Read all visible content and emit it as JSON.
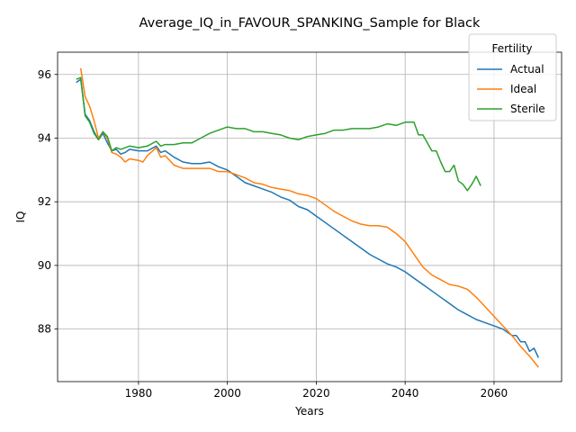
{
  "chart_data": {
    "type": "line",
    "title": "Average_IQ_in_FAVOUR_SPANKING_Sample for Black",
    "xlabel": "Years",
    "ylabel": "IQ",
    "xlim": [
      1961.8,
      2075.2
    ],
    "ylim": [
      86.35,
      96.7
    ],
    "x_ticks": [
      1980,
      2000,
      2020,
      2040,
      2060
    ],
    "y_ticks": [
      88,
      90,
      92,
      94,
      96
    ],
    "grid": true,
    "legend": {
      "title": "Fertility",
      "placement": "top-right"
    },
    "colors": {
      "Actual": "#1f77b4",
      "Ideal": "#ff7f0e",
      "Sterile": "#2ca02c"
    },
    "series": [
      {
        "name": "Actual",
        "points": [
          [
            1966,
            95.75
          ],
          [
            1967,
            95.85
          ],
          [
            1968,
            94.75
          ],
          [
            1969,
            94.55
          ],
          [
            1970,
            94.2
          ],
          [
            1971,
            93.95
          ],
          [
            1972,
            94.15
          ],
          [
            1973,
            93.85
          ],
          [
            1974,
            93.6
          ],
          [
            1975,
            93.65
          ],
          [
            1976,
            93.5
          ],
          [
            1977,
            93.55
          ],
          [
            1978,
            93.65
          ],
          [
            1980,
            93.6
          ],
          [
            1982,
            93.6
          ],
          [
            1984,
            93.75
          ],
          [
            1985,
            93.55
          ],
          [
            1986,
            93.6
          ],
          [
            1988,
            93.4
          ],
          [
            1990,
            93.25
          ],
          [
            1992,
            93.2
          ],
          [
            1994,
            93.2
          ],
          [
            1996,
            93.25
          ],
          [
            1998,
            93.1
          ],
          [
            2000,
            93.0
          ],
          [
            2002,
            92.8
          ],
          [
            2004,
            92.6
          ],
          [
            2006,
            92.5
          ],
          [
            2008,
            92.4
          ],
          [
            2010,
            92.3
          ],
          [
            2012,
            92.15
          ],
          [
            2014,
            92.05
          ],
          [
            2016,
            91.85
          ],
          [
            2018,
            91.75
          ],
          [
            2020,
            91.55
          ],
          [
            2022,
            91.35
          ],
          [
            2024,
            91.15
          ],
          [
            2026,
            90.95
          ],
          [
            2028,
            90.75
          ],
          [
            2030,
            90.55
          ],
          [
            2032,
            90.35
          ],
          [
            2034,
            90.2
          ],
          [
            2036,
            90.05
          ],
          [
            2038,
            89.95
          ],
          [
            2040,
            89.8
          ],
          [
            2042,
            89.6
          ],
          [
            2044,
            89.4
          ],
          [
            2046,
            89.2
          ],
          [
            2048,
            89.0
          ],
          [
            2050,
            88.8
          ],
          [
            2052,
            88.6
          ],
          [
            2054,
            88.45
          ],
          [
            2056,
            88.3
          ],
          [
            2058,
            88.2
          ],
          [
            2060,
            88.1
          ],
          [
            2062,
            88.0
          ],
          [
            2064,
            87.8
          ],
          [
            2065,
            87.8
          ],
          [
            2066,
            87.6
          ],
          [
            2067,
            87.6
          ],
          [
            2068,
            87.3
          ],
          [
            2069,
            87.4
          ],
          [
            2070,
            87.1
          ]
        ]
      },
      {
        "name": "Ideal",
        "points": [
          [
            1967,
            96.2
          ],
          [
            1968,
            95.3
          ],
          [
            1969,
            95.0
          ],
          [
            1970,
            94.55
          ],
          [
            1971,
            94.0
          ],
          [
            1972,
            94.2
          ],
          [
            1973,
            94.0
          ],
          [
            1974,
            93.55
          ],
          [
            1975,
            93.5
          ],
          [
            1976,
            93.4
          ],
          [
            1977,
            93.25
          ],
          [
            1978,
            93.35
          ],
          [
            1980,
            93.3
          ],
          [
            1981,
            93.25
          ],
          [
            1982,
            93.45
          ],
          [
            1984,
            93.7
          ],
          [
            1985,
            93.4
          ],
          [
            1986,
            93.45
          ],
          [
            1988,
            93.15
          ],
          [
            1990,
            93.05
          ],
          [
            1992,
            93.05
          ],
          [
            1994,
            93.05
          ],
          [
            1996,
            93.05
          ],
          [
            1998,
            92.95
          ],
          [
            2000,
            92.95
          ],
          [
            2002,
            92.85
          ],
          [
            2004,
            92.75
          ],
          [
            2006,
            92.6
          ],
          [
            2008,
            92.55
          ],
          [
            2010,
            92.45
          ],
          [
            2012,
            92.4
          ],
          [
            2014,
            92.35
          ],
          [
            2016,
            92.25
          ],
          [
            2018,
            92.2
          ],
          [
            2020,
            92.1
          ],
          [
            2022,
            91.9
          ],
          [
            2024,
            91.7
          ],
          [
            2026,
            91.55
          ],
          [
            2028,
            91.4
          ],
          [
            2030,
            91.3
          ],
          [
            2032,
            91.25
          ],
          [
            2034,
            91.25
          ],
          [
            2036,
            91.2
          ],
          [
            2038,
            91.0
          ],
          [
            2040,
            90.75
          ],
          [
            2042,
            90.35
          ],
          [
            2044,
            89.95
          ],
          [
            2046,
            89.7
          ],
          [
            2048,
            89.55
          ],
          [
            2050,
            89.4
          ],
          [
            2052,
            89.35
          ],
          [
            2054,
            89.25
          ],
          [
            2056,
            89.0
          ],
          [
            2058,
            88.7
          ],
          [
            2060,
            88.4
          ],
          [
            2062,
            88.1
          ],
          [
            2064,
            87.8
          ],
          [
            2066,
            87.45
          ],
          [
            2068,
            87.15
          ],
          [
            2070,
            86.8
          ]
        ]
      },
      {
        "name": "Sterile",
        "points": [
          [
            1966,
            95.85
          ],
          [
            1967,
            95.9
          ],
          [
            1968,
            94.7
          ],
          [
            1969,
            94.5
          ],
          [
            1970,
            94.15
          ],
          [
            1971,
            93.95
          ],
          [
            1972,
            94.2
          ],
          [
            1973,
            94.05
          ],
          [
            1974,
            93.6
          ],
          [
            1975,
            93.7
          ],
          [
            1976,
            93.65
          ],
          [
            1978,
            93.75
          ],
          [
            1980,
            93.7
          ],
          [
            1982,
            93.75
          ],
          [
            1984,
            93.9
          ],
          [
            1985,
            93.75
          ],
          [
            1986,
            93.8
          ],
          [
            1988,
            93.8
          ],
          [
            1990,
            93.85
          ],
          [
            1992,
            93.85
          ],
          [
            1994,
            94.0
          ],
          [
            1996,
            94.15
          ],
          [
            1998,
            94.25
          ],
          [
            2000,
            94.35
          ],
          [
            2002,
            94.3
          ],
          [
            2004,
            94.3
          ],
          [
            2006,
            94.2
          ],
          [
            2008,
            94.2
          ],
          [
            2010,
            94.15
          ],
          [
            2012,
            94.1
          ],
          [
            2014,
            94.0
          ],
          [
            2016,
            93.95
          ],
          [
            2018,
            94.05
          ],
          [
            2020,
            94.1
          ],
          [
            2022,
            94.15
          ],
          [
            2024,
            94.25
          ],
          [
            2026,
            94.25
          ],
          [
            2028,
            94.3
          ],
          [
            2030,
            94.3
          ],
          [
            2032,
            94.3
          ],
          [
            2034,
            94.35
          ],
          [
            2036,
            94.45
          ],
          [
            2038,
            94.4
          ],
          [
            2040,
            94.5
          ],
          [
            2042,
            94.5
          ],
          [
            2043,
            94.1
          ],
          [
            2044,
            94.1
          ],
          [
            2046,
            93.6
          ],
          [
            2047,
            93.6
          ],
          [
            2048,
            93.25
          ],
          [
            2049,
            92.95
          ],
          [
            2050,
            92.95
          ],
          [
            2051,
            93.15
          ],
          [
            2052,
            92.65
          ],
          [
            2053,
            92.55
          ],
          [
            2054,
            92.35
          ],
          [
            2055,
            92.55
          ],
          [
            2056,
            92.8
          ],
          [
            2057,
            92.5
          ]
        ]
      }
    ]
  }
}
